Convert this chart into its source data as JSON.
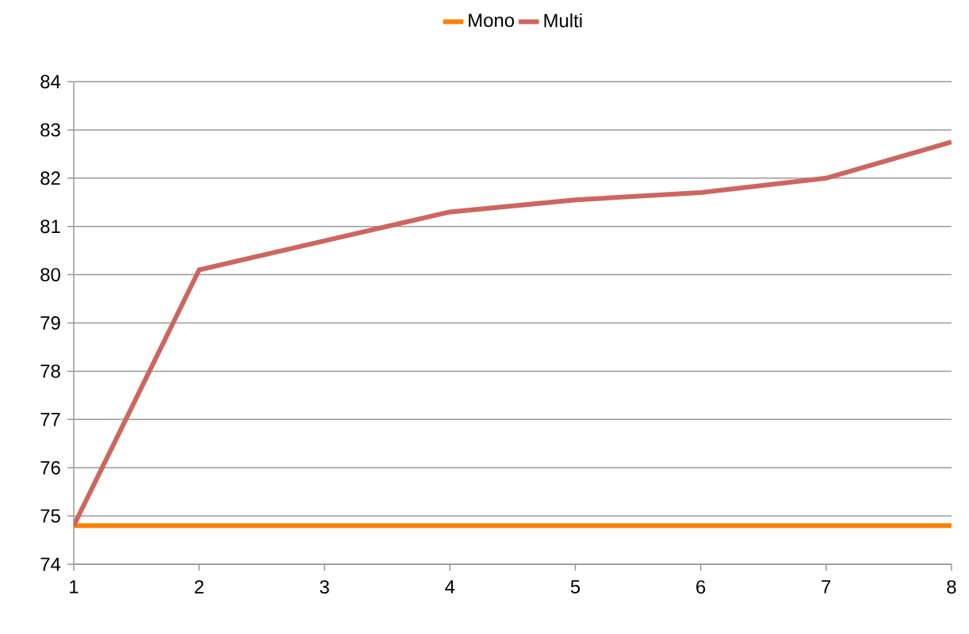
{
  "chart_data": {
    "type": "line",
    "x": [
      1,
      2,
      3,
      4,
      5,
      6,
      7,
      8
    ],
    "series": [
      {
        "name": "Mono",
        "color": "#ff7f00",
        "values": [
          74.8,
          74.8,
          74.8,
          74.8,
          74.8,
          74.8,
          74.8,
          74.8
        ]
      },
      {
        "name": "Multi",
        "color": "#cd6660",
        "values": [
          74.8,
          80.1,
          80.7,
          81.3,
          81.55,
          81.7,
          82.0,
          82.75
        ]
      }
    ],
    "xlim": [
      1,
      8
    ],
    "xticks": [
      1,
      2,
      3,
      4,
      5,
      6,
      7,
      8
    ],
    "ylim": [
      74,
      84
    ],
    "yticks": [
      74,
      75,
      76,
      77,
      78,
      79,
      80,
      81,
      82,
      83,
      84
    ],
    "grid": "y",
    "legend": "top",
    "marker": "none",
    "line_style": "solid"
  }
}
